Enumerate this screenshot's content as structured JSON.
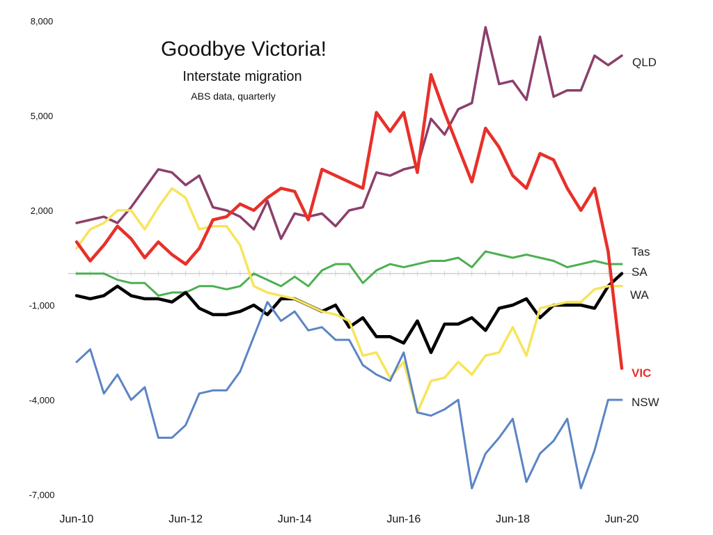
{
  "chart_data": {
    "type": "line",
    "title": "Goodbye Victoria!",
    "subtitle": "Interstate migration",
    "note": "ABS data, quarterly",
    "x_tick_labels": [
      "Jun-10",
      "Jun-12",
      "Jun-14",
      "Jun-16",
      "Jun-18",
      "Jun-20"
    ],
    "y_tick_labels": [
      "8,000",
      "5,000",
      "2,000",
      "-1,000",
      "-4,000",
      "-7,000"
    ],
    "y_ticks": [
      8000,
      5000,
      2000,
      -1000,
      -4000,
      -7000
    ],
    "ylim": [
      -7000,
      8000
    ],
    "x_start": "Jun-10",
    "x_end": "Jun-20",
    "periods": 41,
    "grid": false,
    "zero_line": true,
    "series": [
      {
        "name": "QLD",
        "color": "#8B3F6B",
        "values": [
          1600,
          1700,
          1800,
          1600,
          2100,
          2700,
          3300,
          3200,
          2800,
          3100,
          2100,
          2000,
          1800,
          1400,
          2300,
          1100,
          1900,
          1800,
          1900,
          1500,
          2000,
          2100,
          3200,
          3100,
          3300,
          3400,
          4900,
          4400,
          5200,
          5400,
          7800,
          6000,
          6100,
          5500,
          7500,
          5600,
          5800,
          5800,
          6900,
          6600,
          6900
        ],
        "label": "QLD"
      },
      {
        "name": "Tas",
        "color": "#4CAF50",
        "values": [
          0,
          0,
          0,
          -200,
          -300,
          -300,
          -700,
          -600,
          -600,
          -400,
          -400,
          -500,
          -400,
          0,
          -200,
          -400,
          -100,
          -400,
          100,
          300,
          300,
          -300,
          100,
          300,
          200,
          300,
          400,
          400,
          500,
          200,
          700,
          600,
          500,
          600,
          500,
          400,
          200,
          300,
          400,
          300,
          300
        ],
        "label": "Tas"
      },
      {
        "name": "SA",
        "color": "#000000",
        "values": [
          -700,
          -800,
          -700,
          -400,
          -700,
          -800,
          -800,
          -900,
          -600,
          -1100,
          -1300,
          -1300,
          -1200,
          -1000,
          -1300,
          -800,
          -800,
          -1000,
          -1200,
          -1000,
          -1700,
          -1400,
          -2000,
          -2000,
          -2200,
          -1500,
          -2500,
          -1600,
          -1600,
          -1400,
          -1800,
          -1100,
          -1000,
          -800,
          -1400,
          -1000,
          -1000,
          -1000,
          -1100,
          -400,
          0
        ],
        "label": "SA"
      },
      {
        "name": "WA",
        "color": "#F7E45A",
        "values": [
          800,
          1400,
          1600,
          2000,
          2000,
          1400,
          2100,
          2700,
          2400,
          1400,
          1500,
          1500,
          900,
          -400,
          -600,
          -700,
          -800,
          -1000,
          -1200,
          -1300,
          -1500,
          -2600,
          -2500,
          -3300,
          -2800,
          -4400,
          -3400,
          -3300,
          -2800,
          -3200,
          -2600,
          -2500,
          -1700,
          -2600,
          -1100,
          -1000,
          -900,
          -900,
          -500,
          -400,
          -400
        ],
        "label": "WA"
      },
      {
        "name": "VIC",
        "color": "#E8302A",
        "values": [
          1000,
          400,
          900,
          1500,
          1100,
          500,
          1000,
          600,
          300,
          800,
          1700,
          1800,
          2200,
          2000,
          2400,
          2700,
          2600,
          1700,
          3300,
          3100,
          2900,
          2700,
          5100,
          4500,
          5100,
          3200,
          6300,
          5100,
          4000,
          2900,
          4600,
          4000,
          3100,
          2700,
          3800,
          3600,
          2700,
          2000,
          2700,
          700,
          -3000
        ],
        "label": "VIC"
      },
      {
        "name": "NSW",
        "color": "#5B84C4",
        "values": [
          -2800,
          -2400,
          -3800,
          -3200,
          -4000,
          -3600,
          -5200,
          -5200,
          -4800,
          -3800,
          -3700,
          -3700,
          -3100,
          -2000,
          -900,
          -1500,
          -1200,
          -1800,
          -1700,
          -2100,
          -2100,
          -2900,
          -3200,
          -3400,
          -2500,
          -4400,
          -4500,
          -4300,
          -4000,
          -6800,
          -5700,
          -5200,
          -4600,
          -6600,
          -5700,
          -5300,
          -4600,
          -6800,
          -5600,
          -4000,
          -4000
        ],
        "label": "NSW"
      }
    ]
  }
}
